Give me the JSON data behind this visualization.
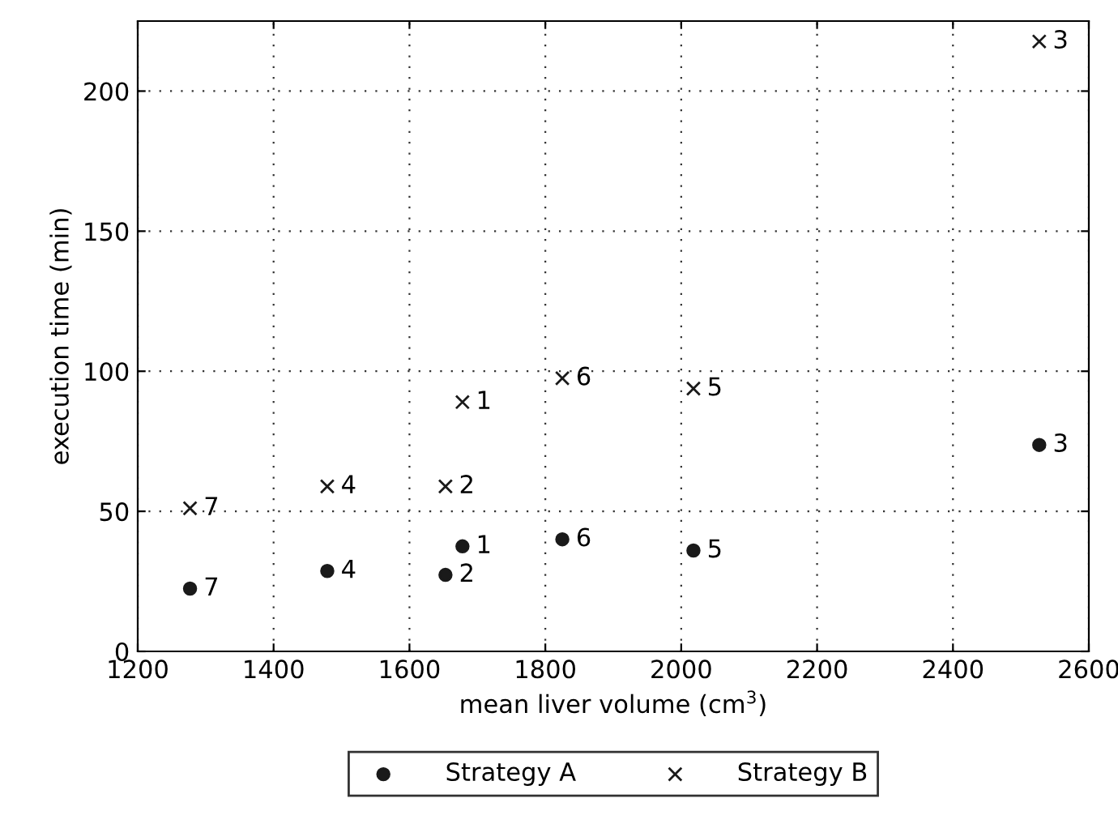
{
  "chart_data": {
    "type": "scatter",
    "xlabel": "mean liver volume (cm$^{3}$)",
    "ylabel": "execution time (min)",
    "xlim": [
      1200,
      2600
    ],
    "xticks": [
      1200,
      1400,
      1600,
      1800,
      2000,
      2200,
      2400,
      2600
    ],
    "ylim": [
      0,
      225
    ],
    "yticks": [
      0,
      50,
      100,
      150,
      200
    ],
    "grid": true,
    "legend": "bottom",
    "series": [
      {
        "name": "Strategy A",
        "color": "#1a1a1a",
        "marker": "circle",
        "x": [
          1678,
          1653,
          2527,
          1479,
          2018,
          1825,
          1277
        ],
        "values": [
          37.5,
          27.3,
          73.7,
          28.7,
          36.0,
          40.0,
          22.4
        ]
      },
      {
        "name": "Strategy B",
        "color": "#1a1a1a",
        "marker": "cross",
        "x": [
          1678,
          1653,
          2527,
          1479,
          2018,
          1825,
          1277
        ],
        "values": [
          89.0,
          58.9,
          217.7,
          58.9,
          93.8,
          97.5,
          51.1
        ]
      }
    ],
    "annotations": [
      {
        "text": "1",
        "x": 1678,
        "y": 37.5
      },
      {
        "text": "2",
        "x": 1653,
        "y": 27.3
      },
      {
        "text": "3",
        "x": 2527,
        "y": 73.7
      },
      {
        "text": "4",
        "x": 1479,
        "y": 28.7
      },
      {
        "text": "5",
        "x": 2018,
        "y": 36.0
      },
      {
        "text": "6",
        "x": 1825,
        "y": 40.0
      },
      {
        "text": "7",
        "x": 1277,
        "y": 22.4
      },
      {
        "text": "1",
        "x": 1678,
        "y": 89.0
      },
      {
        "text": "2",
        "x": 1653,
        "y": 58.9
      },
      {
        "text": "3",
        "x": 2527,
        "y": 217.7
      },
      {
        "text": "4",
        "x": 1479,
        "y": 58.9
      },
      {
        "text": "5",
        "x": 2018,
        "y": 93.8
      },
      {
        "text": "6",
        "x": 1825,
        "y": 97.5
      },
      {
        "text": "7",
        "x": 1277,
        "y": 51.1
      }
    ]
  }
}
